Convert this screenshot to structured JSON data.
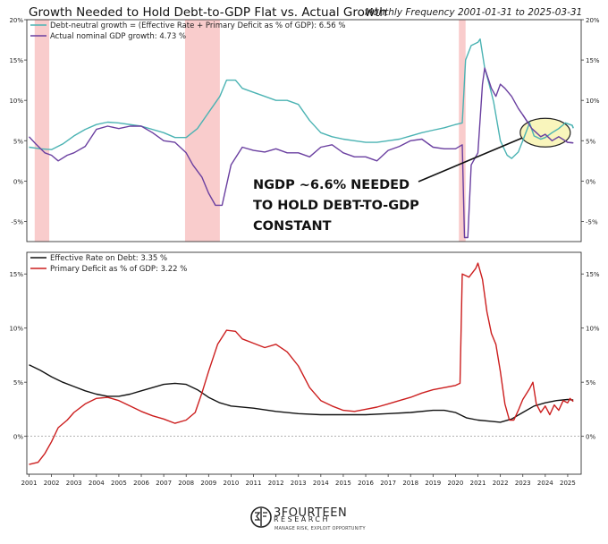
{
  "header": {
    "title": "Growth Needed to Hold Debt-to-GDP Flat vs. Actual Growth",
    "subtitle": "Monthly Frequency 2001-01-31 to 2025-03-31"
  },
  "chart_data": [
    {
      "type": "line",
      "legend_placement": "top-left",
      "ylim": [
        -7.5,
        20
      ],
      "xlim": [
        2000.9,
        2025.6
      ],
      "yticks": [
        -5,
        0,
        5,
        10,
        15,
        20
      ],
      "ytick_labels": [
        "-5%",
        "0%",
        "5%",
        "10%",
        "15%",
        "20%"
      ],
      "grid": false,
      "recessions": [
        [
          2001.25,
          2001.9
        ],
        [
          2007.95,
          2009.5
        ],
        [
          2020.15,
          2020.45
        ]
      ],
      "colors": {
        "recession": "#f8c7c7",
        "debt_neutral": "#4bb3b3",
        "ngdp": "#6a3fa0"
      },
      "annotation": {
        "lines": [
          "NGDP ~6.6% NEEDED",
          "TO HOLD DEBT-TO-GDP",
          "CONSTANT"
        ],
        "target": [
          2024.0,
          6.0
        ]
      },
      "series": [
        {
          "name": "Debt-neutral growth = (Effective Rate + Primary Deficit as % of GDP): 6.56 %",
          "color": "#4bb3b3",
          "points": [
            [
              2001.0,
              4.2
            ],
            [
              2001.5,
              4.0
            ],
            [
              2002.0,
              3.9
            ],
            [
              2002.5,
              4.6
            ],
            [
              2003.0,
              5.6
            ],
            [
              2003.5,
              6.4
            ],
            [
              2004.0,
              7.0
            ],
            [
              2004.5,
              7.3
            ],
            [
              2005.0,
              7.2
            ],
            [
              2006.0,
              6.8
            ],
            [
              2007.0,
              6.0
            ],
            [
              2007.5,
              5.4
            ],
            [
              2008.0,
              5.4
            ],
            [
              2008.5,
              6.5
            ],
            [
              2009.0,
              8.5
            ],
            [
              2009.5,
              10.5
            ],
            [
              2009.8,
              12.5
            ],
            [
              2010.2,
              12.5
            ],
            [
              2010.5,
              11.5
            ],
            [
              2011.0,
              11.0
            ],
            [
              2011.5,
              10.5
            ],
            [
              2012.0,
              10.0
            ],
            [
              2012.5,
              10.0
            ],
            [
              2013.0,
              9.5
            ],
            [
              2013.5,
              7.5
            ],
            [
              2014.0,
              6.0
            ],
            [
              2014.5,
              5.5
            ],
            [
              2015.0,
              5.2
            ],
            [
              2015.5,
              5.0
            ],
            [
              2016.0,
              4.8
            ],
            [
              2016.5,
              4.8
            ],
            [
              2017.0,
              5.0
            ],
            [
              2017.5,
              5.2
            ],
            [
              2018.0,
              5.6
            ],
            [
              2018.5,
              6.0
            ],
            [
              2019.0,
              6.3
            ],
            [
              2019.5,
              6.6
            ],
            [
              2020.0,
              7.0
            ],
            [
              2020.3,
              7.2
            ],
            [
              2020.45,
              15.0
            ],
            [
              2020.7,
              16.8
            ],
            [
              2021.0,
              17.2
            ],
            [
              2021.1,
              17.6
            ],
            [
              2021.3,
              14.0
            ],
            [
              2021.5,
              12.0
            ],
            [
              2021.7,
              9.8
            ],
            [
              2022.0,
              5.0
            ],
            [
              2022.3,
              3.2
            ],
            [
              2022.5,
              2.8
            ],
            [
              2022.8,
              3.6
            ],
            [
              2023.0,
              5.0
            ],
            [
              2023.3,
              7.2
            ],
            [
              2023.5,
              5.6
            ],
            [
              2023.8,
              5.2
            ],
            [
              2024.0,
              5.4
            ],
            [
              2024.3,
              6.0
            ],
            [
              2024.6,
              6.5
            ],
            [
              2024.9,
              7.2
            ],
            [
              2025.2,
              6.9
            ],
            [
              2025.25,
              6.56
            ]
          ]
        },
        {
          "name": "Actual nominal GDP growth: 4.73 %",
          "color": "#6a3fa0",
          "points": [
            [
              2001.0,
              5.5
            ],
            [
              2001.3,
              4.6
            ],
            [
              2001.7,
              3.5
            ],
            [
              2002.0,
              3.2
            ],
            [
              2002.3,
              2.5
            ],
            [
              2002.7,
              3.2
            ],
            [
              2003.0,
              3.5
            ],
            [
              2003.5,
              4.3
            ],
            [
              2004.0,
              6.4
            ],
            [
              2004.5,
              6.8
            ],
            [
              2005.0,
              6.5
            ],
            [
              2005.5,
              6.8
            ],
            [
              2006.0,
              6.8
            ],
            [
              2006.5,
              6.0
            ],
            [
              2007.0,
              5.0
            ],
            [
              2007.5,
              4.8
            ],
            [
              2008.0,
              3.5
            ],
            [
              2008.3,
              2.0
            ],
            [
              2008.7,
              0.5
            ],
            [
              2009.0,
              -1.5
            ],
            [
              2009.3,
              -3.0
            ],
            [
              2009.6,
              -3.0
            ],
            [
              2010.0,
              2.0
            ],
            [
              2010.5,
              4.2
            ],
            [
              2011.0,
              3.8
            ],
            [
              2011.5,
              3.6
            ],
            [
              2012.0,
              4.0
            ],
            [
              2012.5,
              3.5
            ],
            [
              2013.0,
              3.5
            ],
            [
              2013.5,
              3.0
            ],
            [
              2014.0,
              4.2
            ],
            [
              2014.5,
              4.5
            ],
            [
              2015.0,
              3.5
            ],
            [
              2015.5,
              3.0
            ],
            [
              2016.0,
              3.0
            ],
            [
              2016.5,
              2.5
            ],
            [
              2017.0,
              3.8
            ],
            [
              2017.5,
              4.3
            ],
            [
              2018.0,
              5.0
            ],
            [
              2018.5,
              5.2
            ],
            [
              2019.0,
              4.2
            ],
            [
              2019.5,
              4.0
            ],
            [
              2020.0,
              4.0
            ],
            [
              2020.3,
              4.5
            ],
            [
              2020.4,
              -7.0
            ],
            [
              2020.55,
              -7.0
            ],
            [
              2020.7,
              2.0
            ],
            [
              2021.0,
              3.5
            ],
            [
              2021.2,
              12.0
            ],
            [
              2021.3,
              14.0
            ],
            [
              2021.6,
              11.5
            ],
            [
              2021.8,
              10.5
            ],
            [
              2022.0,
              12.0
            ],
            [
              2022.2,
              11.5
            ],
            [
              2022.5,
              10.5
            ],
            [
              2022.8,
              9.0
            ],
            [
              2023.0,
              8.2
            ],
            [
              2023.4,
              6.5
            ],
            [
              2023.8,
              5.5
            ],
            [
              2024.0,
              5.8
            ],
            [
              2024.3,
              5.0
            ],
            [
              2024.6,
              5.5
            ],
            [
              2025.0,
              4.8
            ],
            [
              2025.25,
              4.73
            ]
          ]
        }
      ]
    },
    {
      "type": "line",
      "legend_placement": "top-left",
      "ylim": [
        -3.5,
        17
      ],
      "xlim": [
        2000.9,
        2025.6
      ],
      "yticks": [
        0,
        5,
        10,
        15
      ],
      "ytick_labels": [
        "0%",
        "5%",
        "10%",
        "15%"
      ],
      "grid": false,
      "zero_line": true,
      "x_tick_labels": [
        "2001",
        "2002",
        "2003",
        "2004",
        "2005",
        "2006",
        "2007",
        "2008",
        "2009",
        "2010",
        "2011",
        "2012",
        "2013",
        "2014",
        "2015",
        "2016",
        "2017",
        "2018",
        "2019",
        "2020",
        "2021",
        "2022",
        "2023",
        "2024",
        "2025"
      ],
      "series": [
        {
          "name": "Effective Rate on Debt: 3.35 %",
          "color": "#111111",
          "points": [
            [
              2001.0,
              6.6
            ],
            [
              2001.5,
              6.1
            ],
            [
              2002.0,
              5.5
            ],
            [
              2002.5,
              5.0
            ],
            [
              2003.0,
              4.6
            ],
            [
              2003.5,
              4.2
            ],
            [
              2004.0,
              3.9
            ],
            [
              2004.5,
              3.7
            ],
            [
              2005.0,
              3.7
            ],
            [
              2005.5,
              3.9
            ],
            [
              2006.0,
              4.2
            ],
            [
              2006.5,
              4.5
            ],
            [
              2007.0,
              4.8
            ],
            [
              2007.5,
              4.9
            ],
            [
              2008.0,
              4.8
            ],
            [
              2008.5,
              4.3
            ],
            [
              2009.0,
              3.6
            ],
            [
              2009.5,
              3.1
            ],
            [
              2010.0,
              2.8
            ],
            [
              2011.0,
              2.6
            ],
            [
              2012.0,
              2.3
            ],
            [
              2013.0,
              2.1
            ],
            [
              2014.0,
              2.0
            ],
            [
              2015.0,
              2.0
            ],
            [
              2016.0,
              2.0
            ],
            [
              2017.0,
              2.1
            ],
            [
              2018.0,
              2.2
            ],
            [
              2019.0,
              2.4
            ],
            [
              2019.5,
              2.4
            ],
            [
              2020.0,
              2.2
            ],
            [
              2020.5,
              1.7
            ],
            [
              2021.0,
              1.5
            ],
            [
              2021.5,
              1.4
            ],
            [
              2022.0,
              1.3
            ],
            [
              2022.5,
              1.6
            ],
            [
              2023.0,
              2.2
            ],
            [
              2023.5,
              2.8
            ],
            [
              2024.0,
              3.1
            ],
            [
              2024.5,
              3.3
            ],
            [
              2025.0,
              3.4
            ],
            [
              2025.25,
              3.35
            ]
          ]
        },
        {
          "name": "Primary Deficit as % of GDP: 3.22 %",
          "color": "#cc1e1e",
          "points": [
            [
              2001.0,
              -2.6
            ],
            [
              2001.4,
              -2.4
            ],
            [
              2001.7,
              -1.6
            ],
            [
              2002.0,
              -0.5
            ],
            [
              2002.3,
              0.8
            ],
            [
              2002.7,
              1.5
            ],
            [
              2003.0,
              2.2
            ],
            [
              2003.5,
              3.0
            ],
            [
              2004.0,
              3.5
            ],
            [
              2004.5,
              3.6
            ],
            [
              2005.0,
              3.3
            ],
            [
              2005.5,
              2.8
            ],
            [
              2006.0,
              2.3
            ],
            [
              2006.5,
              1.9
            ],
            [
              2007.0,
              1.6
            ],
            [
              2007.5,
              1.2
            ],
            [
              2008.0,
              1.5
            ],
            [
              2008.4,
              2.2
            ],
            [
              2008.7,
              4.0
            ],
            [
              2009.0,
              6.0
            ],
            [
              2009.4,
              8.5
            ],
            [
              2009.8,
              9.8
            ],
            [
              2010.2,
              9.7
            ],
            [
              2010.5,
              9.0
            ],
            [
              2011.0,
              8.6
            ],
            [
              2011.5,
              8.2
            ],
            [
              2012.0,
              8.5
            ],
            [
              2012.5,
              7.8
            ],
            [
              2013.0,
              6.5
            ],
            [
              2013.5,
              4.5
            ],
            [
              2014.0,
              3.3
            ],
            [
              2014.5,
              2.8
            ],
            [
              2015.0,
              2.4
            ],
            [
              2015.5,
              2.3
            ],
            [
              2016.0,
              2.5
            ],
            [
              2016.5,
              2.7
            ],
            [
              2017.0,
              3.0
            ],
            [
              2017.5,
              3.3
            ],
            [
              2018.0,
              3.6
            ],
            [
              2018.5,
              4.0
            ],
            [
              2019.0,
              4.3
            ],
            [
              2019.5,
              4.5
            ],
            [
              2020.0,
              4.7
            ],
            [
              2020.2,
              4.9
            ],
            [
              2020.3,
              15.0
            ],
            [
              2020.6,
              14.7
            ],
            [
              2020.9,
              15.5
            ],
            [
              2021.0,
              16.0
            ],
            [
              2021.2,
              14.5
            ],
            [
              2021.4,
              11.5
            ],
            [
              2021.6,
              9.5
            ],
            [
              2021.8,
              8.5
            ],
            [
              2022.0,
              6.0
            ],
            [
              2022.2,
              3.0
            ],
            [
              2022.4,
              1.5
            ],
            [
              2022.6,
              1.5
            ],
            [
              2022.8,
              2.4
            ],
            [
              2023.0,
              3.4
            ],
            [
              2023.3,
              4.4
            ],
            [
              2023.45,
              5.0
            ],
            [
              2023.6,
              3.0
            ],
            [
              2023.8,
              2.2
            ],
            [
              2024.0,
              2.8
            ],
            [
              2024.2,
              2.0
            ],
            [
              2024.4,
              2.9
            ],
            [
              2024.6,
              2.4
            ],
            [
              2024.8,
              3.3
            ],
            [
              2025.0,
              3.1
            ],
            [
              2025.1,
              3.5
            ],
            [
              2025.25,
              3.22
            ]
          ]
        }
      ]
    }
  ],
  "branding": {
    "logo_text": "3FOURTEEN",
    "logo_subtext": "RESEARCH",
    "tagline": "MANAGE RISK, EXPLOIT OPPORTUNITY",
    "logo_icon": "3f-circle-logo-icon"
  }
}
